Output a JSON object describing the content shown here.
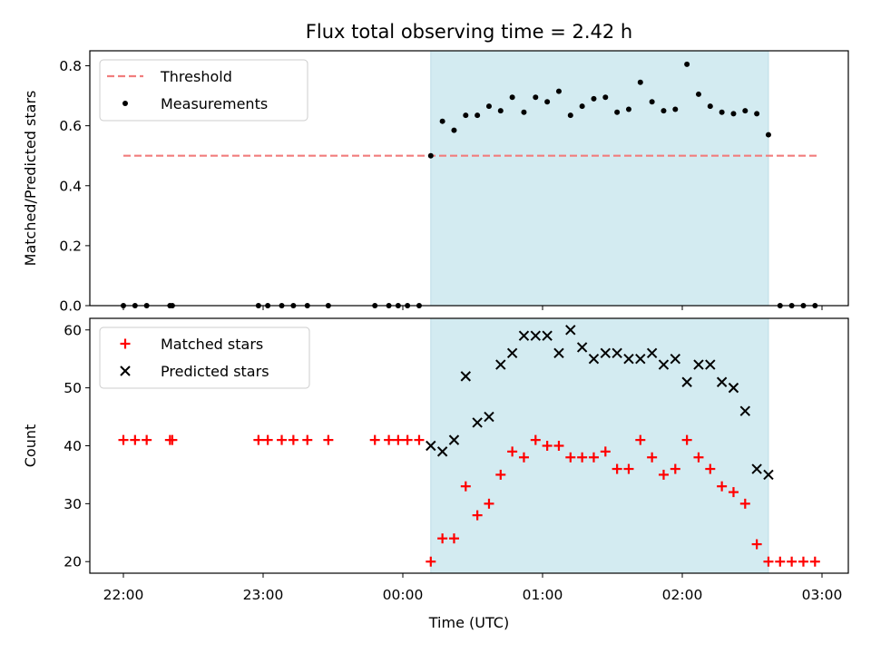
{
  "chart_data": [
    {
      "type": "scatter",
      "title": "Flux total observing time = 2.42 h",
      "xlabel": "",
      "ylabel": "Matched/Predicted stars",
      "ylim": [
        0,
        0.85
      ],
      "yticks": [
        0.0,
        0.2,
        0.4,
        0.6,
        0.8
      ],
      "grid": false,
      "legend": {
        "placement": "top-left",
        "entries": [
          "Threshold",
          "Measurements"
        ]
      },
      "shaded_region": {
        "x_start": "00:12",
        "x_end": "02:37",
        "color": "#d3ebf1"
      },
      "threshold": {
        "name": "Threshold",
        "value": 0.5,
        "x_start": "22:00",
        "x_end": "02:58",
        "color": "#f17d7d"
      },
      "series": [
        {
          "name": "Measurements",
          "color": "#000000",
          "marker": "dot",
          "x": [
            "22:00",
            "22:05",
            "22:10",
            "22:20",
            "22:21",
            "22:58",
            "23:02",
            "23:08",
            "23:13",
            "23:19",
            "23:28",
            "23:48",
            "23:54",
            "23:58",
            "00:02",
            "00:07",
            "00:12",
            "00:17",
            "00:22",
            "00:27",
            "00:32",
            "00:37",
            "00:42",
            "00:47",
            "00:52",
            "00:57",
            "01:02",
            "01:07",
            "01:12",
            "01:17",
            "01:22",
            "01:27",
            "01:32",
            "01:37",
            "01:42",
            "01:47",
            "01:52",
            "01:57",
            "02:02",
            "02:07",
            "02:12",
            "02:17",
            "02:22",
            "02:27",
            "02:32",
            "02:37",
            "02:42",
            "02:47",
            "02:52",
            "02:57"
          ],
          "y": [
            0,
            0,
            0,
            0,
            0,
            0,
            0,
            0,
            0,
            0,
            0,
            0,
            0,
            0,
            0,
            0,
            0.5,
            0.615,
            0.585,
            0.635,
            0.635,
            0.665,
            0.65,
            0.695,
            0.645,
            0.695,
            0.68,
            0.715,
            0.635,
            0.665,
            0.69,
            0.695,
            0.645,
            0.655,
            0.745,
            0.68,
            0.65,
            0.655,
            0.805,
            0.705,
            0.665,
            0.645,
            0.64,
            0.65,
            0.64,
            0.57,
            0,
            0,
            0,
            0
          ]
        }
      ],
      "xticks": [
        "22:00",
        "23:00",
        "00:00",
        "01:00",
        "02:00",
        "03:00"
      ]
    },
    {
      "type": "scatter",
      "title": "",
      "xlabel": "Time (UTC)",
      "ylabel": "Count",
      "ylim": [
        18,
        62
      ],
      "yticks": [
        20,
        30,
        40,
        50,
        60
      ],
      "xticks": [
        "22:00",
        "23:00",
        "00:00",
        "01:00",
        "02:00",
        "03:00"
      ],
      "grid": false,
      "legend": {
        "placement": "top-left",
        "entries": [
          "Matched stars",
          "Predicted stars"
        ]
      },
      "shaded_region": {
        "x_start": "00:12",
        "x_end": "02:37",
        "color": "#d3ebf1"
      },
      "series": [
        {
          "name": "Matched stars",
          "color": "#ff0000",
          "marker": "plus",
          "x": [
            "22:00",
            "22:05",
            "22:10",
            "22:20",
            "22:21",
            "22:58",
            "23:02",
            "23:08",
            "23:13",
            "23:19",
            "23:28",
            "23:48",
            "23:54",
            "23:58",
            "00:02",
            "00:07",
            "00:12",
            "00:17",
            "00:22",
            "00:27",
            "00:32",
            "00:37",
            "00:42",
            "00:47",
            "00:52",
            "00:57",
            "01:02",
            "01:07",
            "01:12",
            "01:17",
            "01:22",
            "01:27",
            "01:32",
            "01:37",
            "01:42",
            "01:47",
            "01:52",
            "01:57",
            "02:02",
            "02:07",
            "02:12",
            "02:17",
            "02:22",
            "02:27",
            "02:32",
            "02:37",
            "02:42",
            "02:47",
            "02:52",
            "02:57"
          ],
          "y": [
            41,
            41,
            41,
            41,
            41,
            41,
            41,
            41,
            41,
            41,
            41,
            41,
            41,
            41,
            41,
            41,
            20,
            24,
            24,
            33,
            28,
            30,
            35,
            39,
            38,
            41,
            40,
            40,
            38,
            38,
            38,
            39,
            36,
            36,
            41,
            38,
            35,
            36,
            41,
            38,
            36,
            33,
            32,
            30,
            23,
            20,
            20,
            20,
            20,
            20
          ]
        },
        {
          "name": "Predicted stars",
          "color": "#000000",
          "marker": "x",
          "x": [
            "00:12",
            "00:17",
            "00:22",
            "00:27",
            "00:32",
            "00:37",
            "00:42",
            "00:47",
            "00:52",
            "00:57",
            "01:02",
            "01:07",
            "01:12",
            "01:17",
            "01:22",
            "01:27",
            "01:32",
            "01:37",
            "01:42",
            "01:47",
            "01:52",
            "01:57",
            "02:02",
            "02:07",
            "02:12",
            "02:17",
            "02:22",
            "02:27",
            "02:32",
            "02:37"
          ],
          "y": [
            40,
            39,
            41,
            52,
            44,
            45,
            54,
            56,
            59,
            59,
            59,
            56,
            60,
            57,
            55,
            56,
            56,
            55,
            55,
            56,
            54,
            55,
            51,
            54,
            54,
            51,
            50,
            46,
            36,
            35
          ]
        }
      ]
    }
  ]
}
